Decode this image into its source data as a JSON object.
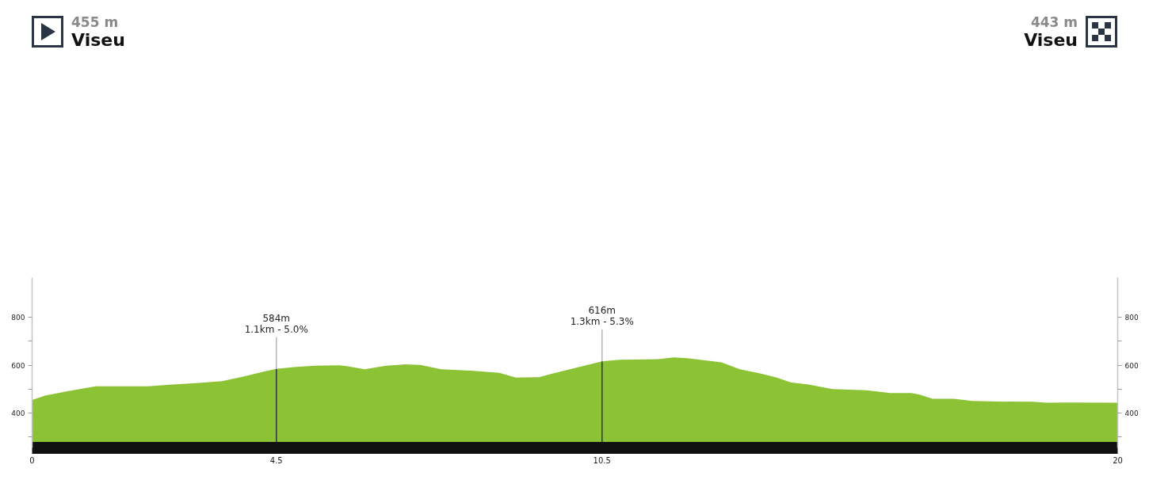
{
  "chart_data": {
    "type": "area",
    "color": "#8bc334",
    "x": [
      0,
      0.24,
      0.63,
      1.17,
      1.6,
      2.14,
      2.53,
      3.07,
      3.5,
      3.89,
      4.28,
      4.5,
      4.82,
      5.21,
      5.65,
      5.79,
      6.13,
      6.52,
      6.86,
      7.15,
      7.54,
      8.08,
      8.61,
      8.91,
      9.34,
      9.54,
      10.07,
      10.5,
      10.82,
      11.53,
      11.82,
      12.07,
      12.7,
      13.04,
      13.43,
      13.72,
      13.97,
      14.31,
      14.74,
      15.37,
      15.81,
      16.2,
      16.35,
      16.59,
      16.98,
      17.32,
      17.81,
      18.44,
      18.69,
      19.03,
      20
    ],
    "values": [
      455,
      473,
      490,
      512,
      512,
      512,
      518,
      526,
      533,
      552,
      574,
      584,
      592,
      598,
      599,
      596,
      583,
      598,
      603,
      601,
      583,
      577,
      568,
      548,
      550,
      562,
      592,
      616,
      622,
      625,
      632,
      629,
      612,
      583,
      565,
      548,
      528,
      519,
      500,
      495,
      484,
      484,
      477,
      460,
      460,
      451,
      448,
      447,
      443,
      444,
      443
    ],
    "xlim": [
      0,
      20
    ],
    "xticks": [
      0,
      4.5,
      10.5,
      20
    ],
    "ylim": [
      255,
      965
    ],
    "yticks": [
      {
        "value": 300,
        "label": null
      },
      400,
      {
        "value": 500,
        "label": null
      },
      600,
      {
        "value": 700,
        "label": null
      },
      800
    ],
    "y2lim": [
      255,
      965
    ],
    "y2ticks": [
      {
        "value": 300,
        "label": null
      },
      400,
      {
        "value": 500,
        "label": null
      },
      600,
      {
        "value": 700,
        "label": null
      },
      800
    ],
    "ref_lines": [
      {
        "axis": "x",
        "value": 4.5,
        "label": "584m\n1.1km - 5.0%",
        "color": "#333333"
      },
      {
        "axis": "x",
        "value": 10.5,
        "label": "616m\n1.3km - 5.3%",
        "color": "#333333"
      }
    ],
    "annotations": [
      "455 m",
      "Viseu",
      "443 m",
      "Viseu"
    ]
  }
}
